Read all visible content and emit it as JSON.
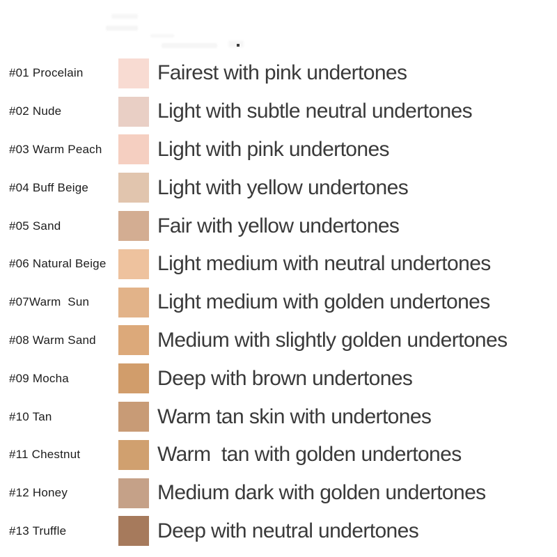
{
  "page": {
    "background": "#ffffff",
    "text_color": "#3a3a3a",
    "label_color": "#1c1c1c"
  },
  "shades": [
    {
      "label": "#01 Procelain",
      "color": "#f8dbd2",
      "description": "Fairest with pink undertones"
    },
    {
      "label": "#02 Nude",
      "color": "#e9cfc5",
      "description": "Light with subtle neutral undertones"
    },
    {
      "label": "#03 Warm Peach",
      "color": "#f5cfc1",
      "description": "Light with pink undertones"
    },
    {
      "label": "#04 Buff Beige",
      "color": "#e1c5ae",
      "description": "Light with yellow undertones"
    },
    {
      "label": "#05 Sand",
      "color": "#d3ad92",
      "description": "Fair with yellow undertones"
    },
    {
      "label": "#06 Natural Beige",
      "color": "#eec29e",
      "description": "Light medium with neutral undertones"
    },
    {
      "label": "#07Warm  Sun",
      "color": "#e2b389",
      "description": "Light medium with golden undertones"
    },
    {
      "label": "#08 Warm Sand",
      "color": "#dca97a",
      "description": "Medium with slightly golden undertones"
    },
    {
      "label": "#09 Mocha",
      "color": "#d19d6b",
      "description": "Deep with brown undertones"
    },
    {
      "label": "#10 Tan",
      "color": "#c89b76",
      "description": "Warm tan skin with undertones"
    },
    {
      "label": "#11 Chestnut",
      "color": "#d0a06f",
      "description": "Warm  tan with golden undertones"
    },
    {
      "label": "#12 Honey",
      "color": "#c5a188",
      "description": "Medium dark with golden undertones"
    },
    {
      "label": "#13 Truffle",
      "color": "#a67a5c",
      "description": "Deep with neutral undertones"
    }
  ]
}
